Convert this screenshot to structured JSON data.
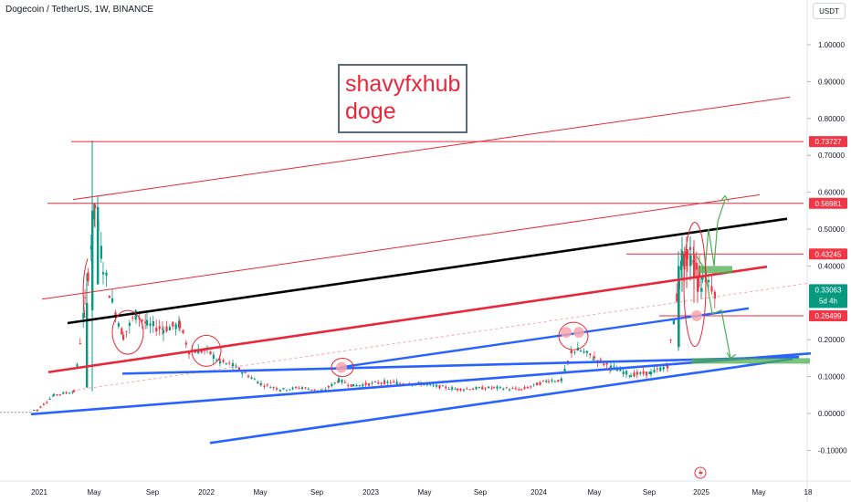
{
  "header": {
    "symbol": "Dogecoin / TetherUS, 1W, BINANCE",
    "currency": "USDT"
  },
  "note": {
    "line1": "shavyfxhub",
    "line2": "doge"
  },
  "colors": {
    "up": "#089981",
    "down": "#f23645",
    "red_line": "#e8283a",
    "blue_line": "#2962ff",
    "black_line": "#000000",
    "green_zone": "#4caf50"
  },
  "chart_data": {
    "type": "candlestick",
    "title": "Dogecoin / TetherUS, 1W, BINANCE",
    "x_ticks": [
      "2021",
      "May",
      "Sep",
      "2022",
      "May",
      "Sep",
      "2023",
      "May",
      "Sep",
      "2024",
      "May",
      "Sep",
      "2025",
      "May",
      "18"
    ],
    "y_ticks": [
      "1.00000",
      "0.90000",
      "0.80000",
      "0.70000",
      "0.60000",
      "0.50000",
      "0.40000",
      "0.20000",
      "0.10000",
      "0.00000",
      "-0.10000"
    ],
    "ylim": [
      -0.13,
      1.05
    ],
    "grid": false,
    "price_labels": [
      {
        "value": 0.73727,
        "text": "0.73727",
        "color": "#f23645"
      },
      {
        "value": 0.56981,
        "text": "0.56981",
        "color": "#f23645"
      },
      {
        "value": 0.43245,
        "text": "0.43245",
        "color": "#f23645"
      },
      {
        "value": 0.33063,
        "text": "0.33063",
        "color": "#089981",
        "sub": "5d 4h"
      },
      {
        "value": 0.26499,
        "text": "0.26499",
        "color": "#f23645"
      }
    ],
    "price_series": [
      [
        "2020-12",
        0.005
      ],
      [
        "2021-01",
        0.01
      ],
      [
        "2021-02",
        0.05
      ],
      [
        "2021-03",
        0.06
      ],
      [
        "2021-04",
        0.3
      ],
      [
        "2021-05",
        0.56
      ],
      [
        "2021-05b",
        0.4
      ],
      [
        "2021-06",
        0.3
      ],
      [
        "2021-07",
        0.21
      ],
      [
        "2021-08",
        0.27
      ],
      [
        "2021-09",
        0.24
      ],
      [
        "2021-10",
        0.23
      ],
      [
        "2021-11",
        0.24
      ],
      [
        "2021-12",
        0.17
      ],
      [
        "2022-01",
        0.17
      ],
      [
        "2022-02",
        0.14
      ],
      [
        "2022-03",
        0.13
      ],
      [
        "2022-05",
        0.08
      ],
      [
        "2022-06",
        0.065
      ],
      [
        "2022-08",
        0.07
      ],
      [
        "2022-10",
        0.06
      ],
      [
        "2022-11",
        0.09
      ],
      [
        "2022-12",
        0.075
      ],
      [
        "2023-02",
        0.085
      ],
      [
        "2023-04",
        0.08
      ],
      [
        "2023-06",
        0.066
      ],
      [
        "2023-08",
        0.07
      ],
      [
        "2023-10",
        0.065
      ],
      [
        "2023-12",
        0.09
      ],
      [
        "2024-02",
        0.09
      ],
      [
        "2024-03",
        0.17
      ],
      [
        "2024-04",
        0.17
      ],
      [
        "2024-05",
        0.15
      ],
      [
        "2024-06",
        0.125
      ],
      [
        "2024-08",
        0.105
      ],
      [
        "2024-09",
        0.11
      ],
      [
        "2024-10",
        0.13
      ],
      [
        "2024-11",
        0.4
      ],
      [
        "2024-12",
        0.43
      ],
      [
        "2024-12b",
        0.39
      ],
      [
        "2025-01",
        0.36
      ],
      [
        "2025-01b",
        0.33
      ]
    ],
    "horizontal_levels": [
      0.73727,
      0.56981,
      0.43245,
      0.26499
    ],
    "support_zones": [
      {
        "low": 0.135,
        "high": 0.15
      },
      {
        "low": 0.38,
        "high": 0.4
      }
    ]
  }
}
